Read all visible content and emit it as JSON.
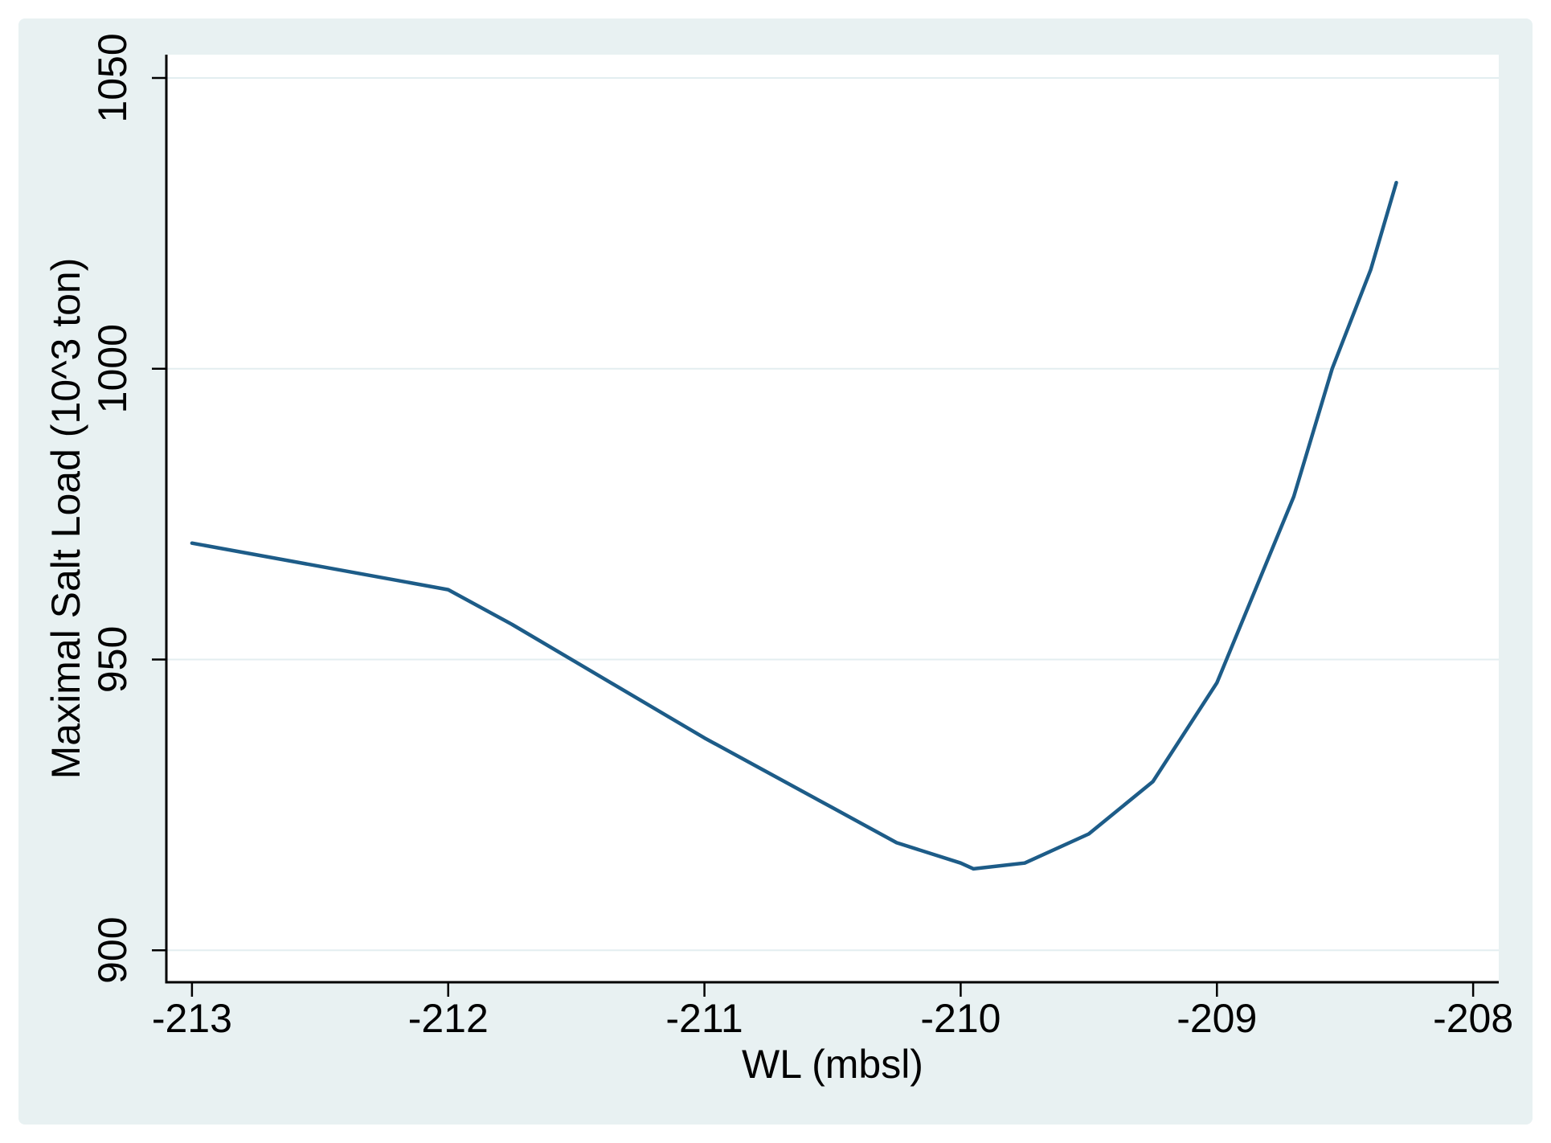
{
  "colors": {
    "canvas": "#E8F1F2",
    "plot_background": "#FFFFFF",
    "grid": "#E3EEF0",
    "axis": "#000000",
    "text": "#000000",
    "line": "#1D5C88"
  },
  "chart_data": {
    "type": "line",
    "title": "",
    "xlabel": "WL (mbsl)",
    "ylabel": "Maximal Salt Load (10^3 ton)",
    "x_ticks": [
      -213,
      -212,
      -211,
      -210,
      -209,
      -208
    ],
    "x_tick_labels": [
      "-213",
      "-212",
      "-211",
      "-210",
      "-209",
      "-208"
    ],
    "y_ticks": [
      900,
      950,
      1000,
      1050
    ],
    "y_tick_labels": [
      "900",
      "950",
      "1000",
      "1050"
    ],
    "xlim": [
      -213.1,
      -207.9
    ],
    "ylim": [
      894.5,
      1054
    ],
    "grid": "horizontal gridlines only",
    "legend": "none",
    "series": [
      {
        "color": "#1D5C88",
        "x": [
          -213.0,
          -212.0,
          -211.75,
          -211.5,
          -211.25,
          -211.0,
          -210.75,
          -210.5,
          -210.25,
          -210.0,
          -209.95,
          -209.75,
          -209.5,
          -209.25,
          -209.0,
          -208.85,
          -208.7,
          -208.55,
          -208.4,
          -208.3
        ],
        "y": [
          970,
          962,
          956,
          949.5,
          943,
          936.5,
          930.5,
          924.5,
          918.5,
          915,
          914,
          915,
          920,
          929,
          946,
          962,
          978,
          1000,
          1017,
          1032
        ]
      }
    ]
  }
}
